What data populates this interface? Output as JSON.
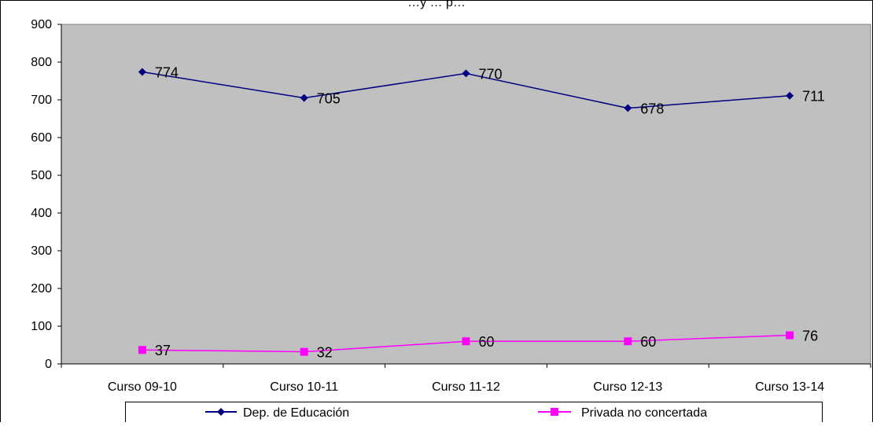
{
  "chart_data": {
    "type": "line",
    "title": "…y … p…",
    "xlabel": "",
    "ylabel": "",
    "categories": [
      "Curso 09-10",
      "Curso 10-11",
      "Curso 11-12",
      "Curso 12-13",
      "Curso 13-14"
    ],
    "ylim": [
      0,
      900
    ],
    "yticks": [
      0,
      100,
      200,
      300,
      400,
      500,
      600,
      700,
      800,
      900
    ],
    "grid": false,
    "plot_background": "#c0c0c0",
    "legend_position": "bottom",
    "series": [
      {
        "name": "Dep. de Educación",
        "values": [
          774,
          705,
          770,
          678,
          711
        ],
        "color": "#000080",
        "marker": "diamond"
      },
      {
        "name": "Privada no concertada",
        "values": [
          37,
          32,
          60,
          60,
          76
        ],
        "color": "#ff00ff",
        "marker": "square"
      }
    ]
  }
}
